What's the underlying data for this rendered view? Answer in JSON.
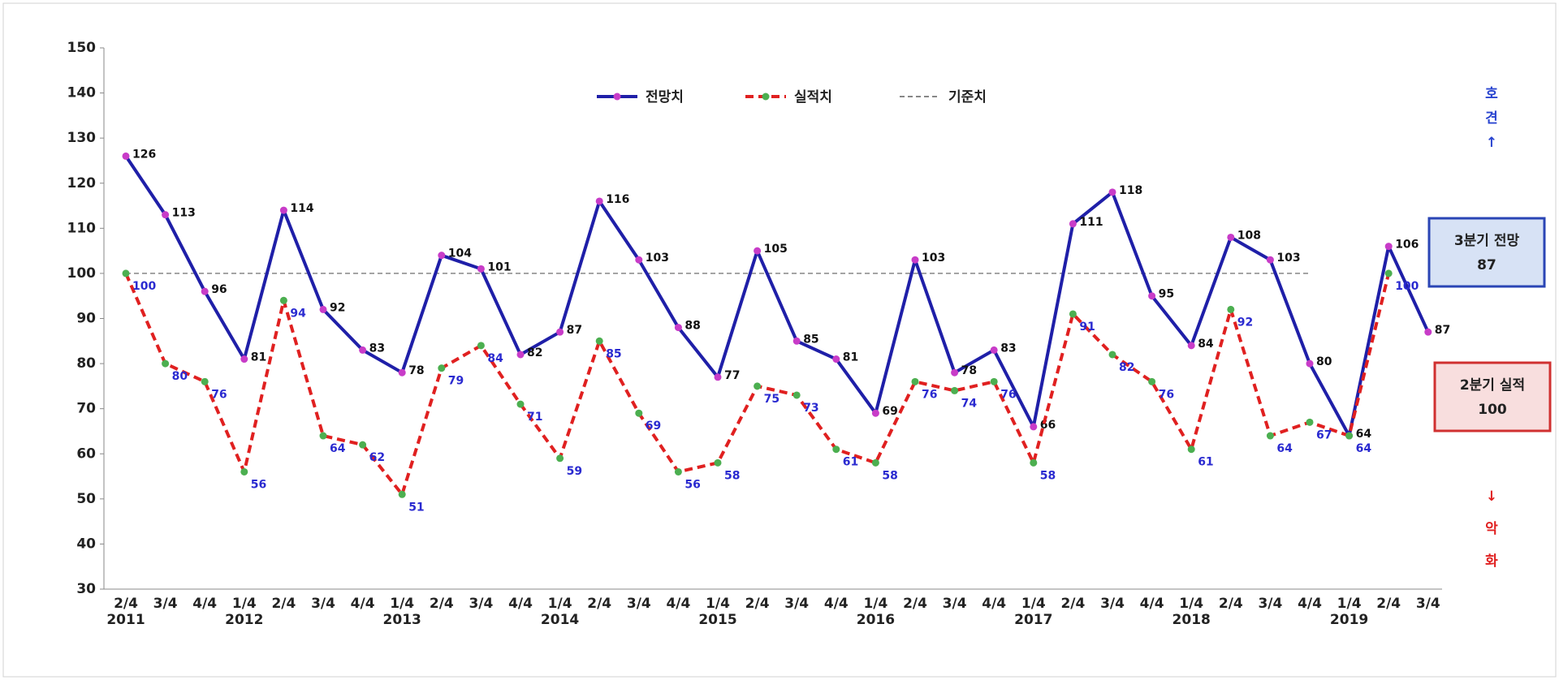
{
  "chart_data": {
    "type": "line",
    "categories": [
      "2/4",
      "3/4",
      "4/4",
      "1/4",
      "2/4",
      "3/4",
      "4/4",
      "1/4",
      "2/4",
      "3/4",
      "4/4",
      "1/4",
      "2/4",
      "3/4",
      "4/4",
      "1/4",
      "2/4",
      "3/4",
      "4/4",
      "1/4",
      "2/4",
      "3/4",
      "4/4",
      "1/4",
      "2/4",
      "3/4",
      "4/4",
      "1/4",
      "2/4",
      "3/4",
      "4/4",
      "1/4",
      "2/4",
      "3/4"
    ],
    "years": [
      "2011",
      null,
      null,
      "2012",
      null,
      null,
      null,
      "2013",
      null,
      null,
      null,
      "2014",
      null,
      null,
      null,
      "2015",
      null,
      null,
      null,
      "2016",
      null,
      null,
      null,
      "2017",
      null,
      null,
      null,
      "2018",
      null,
      null,
      null,
      "2019",
      null,
      null
    ],
    "series": [
      {
        "name": "전망치",
        "color": "#1f1fa8",
        "marker_color": "#c83cc8",
        "label_color": "#111111",
        "dashed": false,
        "values": [
          126,
          113,
          96,
          81,
          114,
          92,
          83,
          78,
          104,
          101,
          82,
          87,
          116,
          103,
          88,
          77,
          105,
          85,
          81,
          69,
          103,
          78,
          83,
          66,
          111,
          118,
          95,
          84,
          108,
          103,
          80,
          64,
          106,
          87
        ]
      },
      {
        "name": "실적치",
        "color": "#e02020",
        "marker_color": "#4caf50",
        "label_color": "#2a2ad0",
        "dashed": true,
        "values": [
          100,
          80,
          76,
          56,
          94,
          64,
          62,
          51,
          79,
          84,
          71,
          59,
          85,
          69,
          56,
          58,
          75,
          73,
          61,
          58,
          76,
          74,
          76,
          58,
          91,
          82,
          76,
          61,
          92,
          64,
          67,
          64,
          100,
          null
        ]
      }
    ],
    "baseline": {
      "name": "기준치",
      "value": 100,
      "color": "#888888"
    },
    "ylim": [
      30,
      150
    ],
    "yticks": [
      30,
      40,
      50,
      60,
      70,
      80,
      90,
      100,
      110,
      120,
      130,
      140,
      150
    ],
    "boxes": [
      {
        "title": "3분기 전망",
        "value": 87,
        "border": "#2a45b5",
        "fill": "#d7e2f5"
      },
      {
        "title": "2분기 실적",
        "value": 100,
        "border": "#d03030",
        "fill": "#f8dede"
      }
    ],
    "side_labels": {
      "up": [
        "호",
        "견",
        "↑"
      ],
      "down": [
        "↓",
        "악",
        "화"
      ]
    }
  }
}
